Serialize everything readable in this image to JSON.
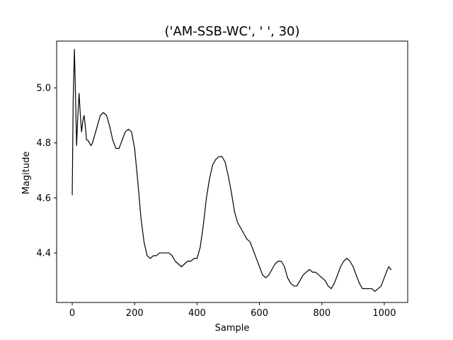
{
  "chart_data": {
    "type": "line",
    "title": "('AM-SSB-WC', '  ', 30)",
    "xlabel": "Sample",
    "ylabel": "Magitude",
    "xlim": [
      -50,
      1075
    ],
    "ylim": [
      4.22,
      5.17
    ],
    "xticks": [
      0,
      200,
      400,
      600,
      800,
      1000
    ],
    "yticks": [
      4.4,
      4.6,
      4.8,
      5.0
    ],
    "ytick_labels": [
      "4.4",
      "4.6",
      "4.8",
      "5.0"
    ],
    "grid": false,
    "legend": "none",
    "line_color": "#000000",
    "series": [
      {
        "x": [
          0,
          3,
          7,
          10,
          14,
          18,
          22,
          26,
          30,
          34,
          38,
          42,
          46,
          50,
          55,
          60,
          65,
          70,
          80,
          90,
          100,
          110,
          120,
          130,
          140,
          150,
          160,
          170,
          180,
          190,
          200,
          210,
          220,
          230,
          240,
          250,
          260,
          270,
          280,
          290,
          300,
          310,
          320,
          330,
          340,
          350,
          360,
          370,
          380,
          390,
          400,
          410,
          420,
          430,
          440,
          450,
          460,
          470,
          480,
          490,
          500,
          510,
          520,
          530,
          540,
          550,
          560,
          570,
          580,
          590,
          600,
          610,
          620,
          630,
          640,
          650,
          660,
          670,
          680,
          690,
          700,
          710,
          720,
          730,
          740,
          750,
          760,
          770,
          780,
          790,
          800,
          810,
          820,
          830,
          840,
          850,
          860,
          870,
          880,
          890,
          900,
          910,
          920,
          930,
          940,
          950,
          960,
          970,
          980,
          990,
          1000,
          1010,
          1015,
          1020,
          1023
        ],
        "y": [
          4.61,
          4.95,
          5.14,
          5.0,
          4.79,
          4.9,
          4.98,
          4.9,
          4.84,
          4.88,
          4.9,
          4.86,
          4.81,
          4.81,
          4.8,
          4.79,
          4.8,
          4.82,
          4.86,
          4.9,
          4.91,
          4.9,
          4.86,
          4.81,
          4.78,
          4.78,
          4.81,
          4.84,
          4.85,
          4.84,
          4.78,
          4.66,
          4.53,
          4.44,
          4.39,
          4.38,
          4.39,
          4.39,
          4.4,
          4.4,
          4.4,
          4.4,
          4.39,
          4.37,
          4.36,
          4.35,
          4.36,
          4.37,
          4.37,
          4.38,
          4.38,
          4.42,
          4.5,
          4.6,
          4.67,
          4.72,
          4.74,
          4.75,
          4.75,
          4.73,
          4.68,
          4.62,
          4.55,
          4.51,
          4.49,
          4.47,
          4.45,
          4.44,
          4.41,
          4.38,
          4.35,
          4.32,
          4.31,
          4.32,
          4.34,
          4.36,
          4.37,
          4.37,
          4.35,
          4.31,
          4.29,
          4.28,
          4.28,
          4.3,
          4.32,
          4.33,
          4.34,
          4.33,
          4.33,
          4.32,
          4.31,
          4.3,
          4.28,
          4.27,
          4.29,
          4.32,
          4.35,
          4.37,
          4.38,
          4.37,
          4.35,
          4.32,
          4.29,
          4.27,
          4.27,
          4.27,
          4.27,
          4.26,
          4.27,
          4.28,
          4.31,
          4.34,
          4.35,
          4.34,
          4.34
        ]
      }
    ]
  }
}
